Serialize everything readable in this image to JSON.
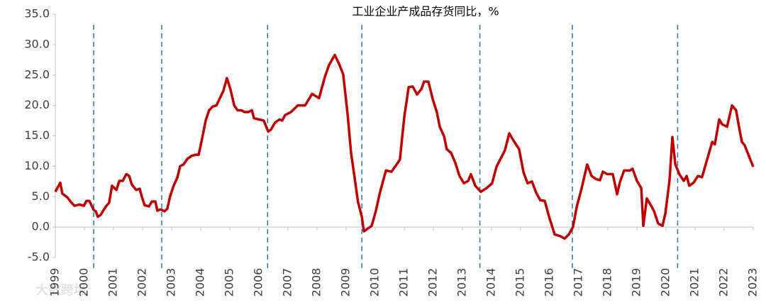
{
  "chart_data": {
    "type": "line",
    "title": "工业企业产成品存货同比，%",
    "watermark": "大数跨境",
    "xlim": [
      1999,
      2023
    ],
    "ylim": [
      -5,
      35
    ],
    "xticks": [
      1999,
      2000,
      2001,
      2002,
      2003,
      2004,
      2005,
      2006,
      2007,
      2008,
      2009,
      2010,
      2011,
      2012,
      2013,
      2014,
      2015,
      2016,
      2017,
      2018,
      2019,
      2020,
      2021,
      2022,
      2023
    ],
    "yticks": [
      {
        "value": -5,
        "label": "-5.0"
      },
      {
        "value": 0,
        "label": "0.0"
      },
      {
        "value": 5,
        "label": "5.0"
      },
      {
        "value": 10,
        "label": "10.0"
      },
      {
        "value": 15,
        "label": "15.0"
      },
      {
        "value": 20,
        "label": "20.0"
      },
      {
        "value": 25,
        "label": "25.0"
      },
      {
        "value": 30,
        "label": "30.0"
      },
      {
        "value": 35,
        "label": "35.0"
      }
    ],
    "grid": false,
    "reference_lines": [
      2000.32,
      2002.66,
      2006.3,
      2009.54,
      2013.6,
      2016.78,
      2020.4
    ],
    "reference_color": "#2e75b6",
    "series": [
      {
        "color": "#c00000",
        "x": [
          1999.0,
          1999.17,
          1999.24,
          1999.41,
          1999.54,
          1999.66,
          1999.83,
          1999.98,
          2000.07,
          2000.17,
          2000.32,
          2000.39,
          2000.46,
          2000.56,
          2000.66,
          2000.76,
          2000.85,
          2000.95,
          2001.1,
          2001.2,
          2001.32,
          2001.44,
          2001.54,
          2001.63,
          2001.78,
          2001.9,
          2001.98,
          2002.07,
          2002.22,
          2002.32,
          2002.44,
          2002.51,
          2002.61,
          2002.76,
          2002.85,
          2002.95,
          2003.07,
          2003.2,
          2003.29,
          2003.41,
          2003.54,
          2003.68,
          2003.83,
          2003.93,
          2004.05,
          2004.17,
          2004.29,
          2004.41,
          2004.54,
          2004.66,
          2004.78,
          2004.9,
          2005.02,
          2005.15,
          2005.27,
          2005.39,
          2005.51,
          2005.63,
          2005.76,
          2005.83,
          2006.0,
          2006.17,
          2006.32,
          2006.41,
          2006.56,
          2006.71,
          2006.8,
          2006.9,
          2007.1,
          2007.34,
          2007.59,
          2007.83,
          2008.07,
          2008.27,
          2008.41,
          2008.61,
          2008.76,
          2008.9,
          2009.05,
          2009.17,
          2009.29,
          2009.41,
          2009.54,
          2009.61,
          2009.73,
          2009.88,
          2010.02,
          2010.17,
          2010.37,
          2010.56,
          2010.71,
          2010.85,
          2011.0,
          2011.15,
          2011.29,
          2011.44,
          2011.59,
          2011.68,
          2011.83,
          2011.98,
          2012.12,
          2012.22,
          2012.37,
          2012.46,
          2012.61,
          2012.76,
          2012.9,
          2013.05,
          2013.2,
          2013.29,
          2013.44,
          2013.63,
          2013.83,
          2014.02,
          2014.17,
          2014.32,
          2014.46,
          2014.61,
          2014.76,
          2014.95,
          2015.1,
          2015.24,
          2015.39,
          2015.54,
          2015.68,
          2015.83,
          2015.98,
          2016.17,
          2016.37,
          2016.51,
          2016.66,
          2016.8,
          2016.93,
          2017.1,
          2017.29,
          2017.44,
          2017.59,
          2017.73,
          2017.83,
          2017.98,
          2018.17,
          2018.32,
          2018.41,
          2018.56,
          2018.76,
          2018.85,
          2019.0,
          2019.15,
          2019.22,
          2019.34,
          2019.49,
          2019.59,
          2019.73,
          2019.88,
          2019.98,
          2020.12,
          2020.22,
          2020.32,
          2020.46,
          2020.61,
          2020.71,
          2020.8,
          2020.95,
          2021.1,
          2021.24,
          2021.39,
          2021.59,
          2021.68,
          2021.83,
          2021.93,
          2022.1,
          2022.27,
          2022.41,
          2022.51,
          2022.61,
          2022.71,
          2022.9,
          2023.0
        ],
        "values": [
          5.8,
          7.3,
          5.5,
          4.9,
          4.1,
          3.5,
          3.7,
          3.5,
          4.3,
          4.3,
          2.8,
          2.6,
          1.7,
          2.0,
          2.8,
          3.5,
          4.0,
          6.8,
          6.1,
          7.6,
          7.6,
          8.7,
          8.4,
          7.0,
          6.1,
          6.3,
          4.9,
          3.6,
          3.4,
          4.2,
          4.2,
          2.7,
          2.9,
          2.6,
          3.0,
          5.1,
          6.8,
          8.2,
          10.0,
          10.3,
          11.2,
          11.7,
          11.9,
          11.9,
          14.6,
          17.5,
          19.2,
          19.8,
          20.0,
          21.2,
          22.4,
          24.5,
          22.7,
          20.0,
          19.2,
          19.2,
          18.9,
          18.9,
          19.2,
          17.9,
          17.7,
          17.5,
          15.7,
          16.0,
          17.2,
          17.7,
          17.5,
          18.4,
          18.9,
          20.0,
          20.0,
          21.9,
          21.2,
          24.7,
          26.6,
          28.3,
          26.8,
          25.1,
          18.6,
          12.2,
          8.2,
          4.1,
          1.7,
          -0.7,
          -0.3,
          0.2,
          2.6,
          5.8,
          9.3,
          9.1,
          10.1,
          11.1,
          18.1,
          23.0,
          23.1,
          21.8,
          22.7,
          23.9,
          23.9,
          21.0,
          18.9,
          16.5,
          14.9,
          12.8,
          12.2,
          10.5,
          8.4,
          7.2,
          7.6,
          8.7,
          6.8,
          5.8,
          6.4,
          7.2,
          9.9,
          11.3,
          12.6,
          15.4,
          14.2,
          12.8,
          9.0,
          7.2,
          7.5,
          5.6,
          4.4,
          4.3,
          1.7,
          -1.2,
          -1.5,
          -1.9,
          -1.2,
          0.0,
          3.3,
          6.4,
          10.3,
          8.4,
          7.9,
          7.7,
          9.1,
          8.7,
          8.7,
          5.4,
          7.3,
          9.3,
          9.3,
          9.6,
          7.6,
          6.4,
          0.2,
          4.7,
          3.5,
          2.6,
          0.6,
          0.2,
          2.3,
          7.6,
          14.8,
          10.3,
          8.7,
          7.6,
          8.4,
          6.8,
          7.3,
          8.4,
          8.2,
          10.7,
          14.0,
          13.6,
          17.7,
          16.9,
          16.5,
          20.0,
          19.2,
          16.5,
          14.0,
          13.4,
          11.1,
          9.9
        ]
      }
    ]
  }
}
